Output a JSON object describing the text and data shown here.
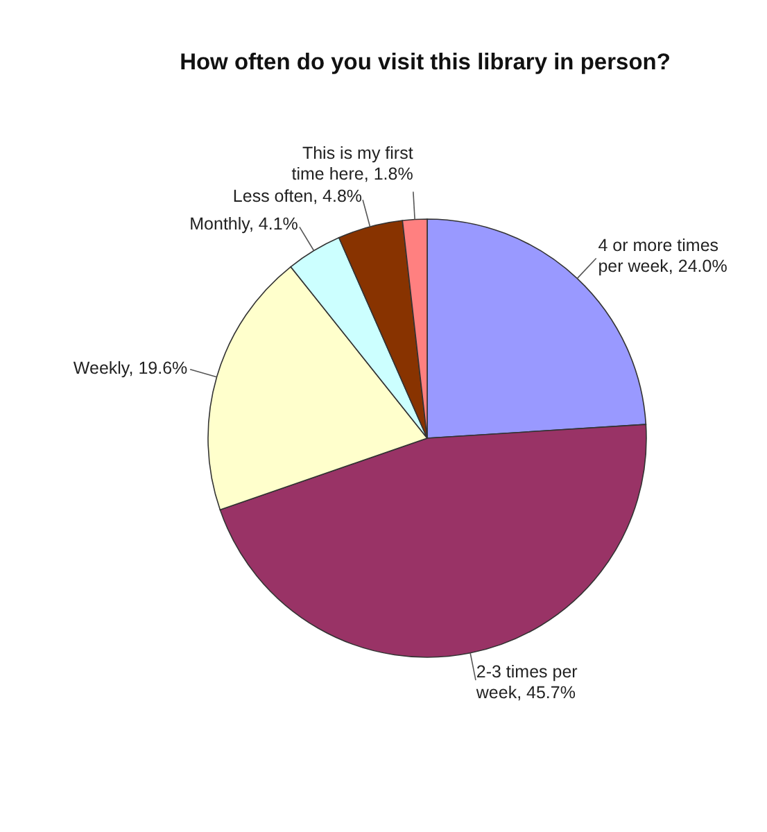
{
  "chart_data": {
    "type": "pie",
    "title": "How often do you visit this library in person?",
    "categories": [
      "4 or more times per week",
      "2-3 times per week",
      "Weekly",
      "Monthly",
      "Less often",
      "This is my first time here"
    ],
    "values": [
      24.0,
      45.7,
      19.6,
      4.1,
      4.8,
      1.8
    ],
    "value_labels": [
      "24.0%",
      "45.7%",
      "19.6%",
      "4.1%",
      "4.8%",
      "1.8%"
    ],
    "colors": [
      "#9999ff",
      "#993366",
      "#ffffcc",
      "#ccffff",
      "#883300",
      "#ff8080"
    ],
    "legend": false
  }
}
